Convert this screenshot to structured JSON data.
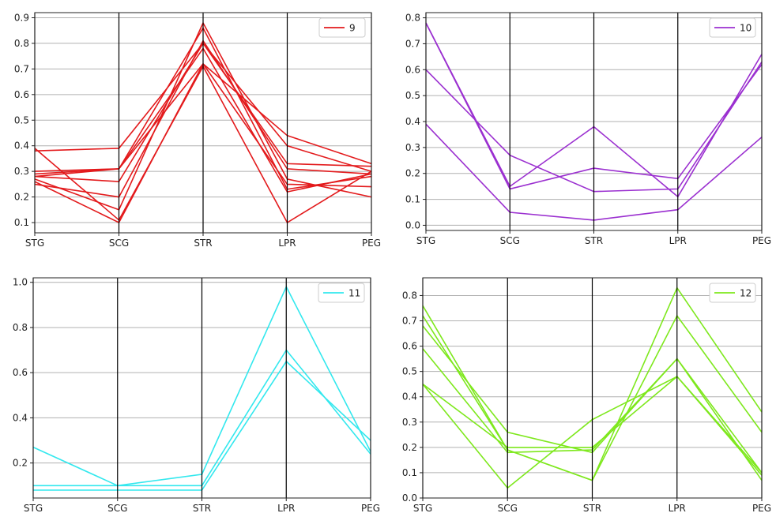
{
  "chart_data": [
    {
      "type": "line",
      "subtype": "parallel-coordinates",
      "title": "",
      "categories": [
        "STG",
        "SCG",
        "STR",
        "LPR",
        "PEG"
      ],
      "legend": {
        "label": "9",
        "position": "top-right"
      },
      "color": "#e31a1c",
      "ylim": [
        0.06,
        0.92
      ],
      "yticks": [
        0.1,
        0.2,
        0.3,
        0.4,
        0.5,
        0.6,
        0.7,
        0.8,
        0.9
      ],
      "ytick_labels": [
        "0.1",
        "0.2",
        "0.3",
        "0.4",
        "0.5",
        "0.6",
        "0.7",
        "0.8",
        "0.9"
      ],
      "series": [
        {
          "name": "9",
          "values": [
            0.38,
            0.39,
            0.8,
            0.4,
            0.3
          ]
        },
        {
          "name": "9",
          "values": [
            0.29,
            0.31,
            0.72,
            0.44,
            0.33
          ]
        },
        {
          "name": "9",
          "values": [
            0.28,
            0.26,
            0.8,
            0.33,
            0.32
          ]
        },
        {
          "name": "9",
          "values": [
            0.25,
            0.2,
            0.81,
            0.31,
            0.29
          ]
        },
        {
          "name": "9",
          "values": [
            0.27,
            0.15,
            0.88,
            0.27,
            0.2
          ]
        },
        {
          "name": "9",
          "values": [
            0.3,
            0.31,
            0.86,
            0.23,
            0.28
          ]
        },
        {
          "name": "9",
          "values": [
            0.26,
            0.1,
            0.72,
            0.25,
            0.24
          ]
        },
        {
          "name": "9",
          "values": [
            0.28,
            0.31,
            0.78,
            0.22,
            0.29
          ]
        },
        {
          "name": "9",
          "values": [
            0.39,
            0.11,
            0.71,
            0.1,
            0.3
          ]
        }
      ]
    },
    {
      "type": "line",
      "subtype": "parallel-coordinates",
      "title": "",
      "categories": [
        "STG",
        "SCG",
        "STR",
        "LPR",
        "PEG"
      ],
      "legend": {
        "label": "10",
        "position": "top-right"
      },
      "color": "#9b30d0",
      "ylim": [
        -0.02,
        0.82
      ],
      "yticks": [
        0.0,
        0.1,
        0.2,
        0.3,
        0.4,
        0.5,
        0.6,
        0.7,
        0.8
      ],
      "ytick_labels": [
        "0.0",
        "0.1",
        "0.2",
        "0.3",
        "0.4",
        "0.5",
        "0.6",
        "0.7",
        "0.8"
      ],
      "series": [
        {
          "name": "10",
          "values": [
            0.78,
            0.15,
            0.38,
            0.11,
            0.66
          ]
        },
        {
          "name": "10",
          "values": [
            0.78,
            0.14,
            0.22,
            0.18,
            0.62
          ]
        },
        {
          "name": "10",
          "values": [
            0.6,
            0.27,
            0.13,
            0.14,
            0.63
          ]
        },
        {
          "name": "10",
          "values": [
            0.39,
            0.05,
            0.02,
            0.06,
            0.34
          ]
        }
      ]
    },
    {
      "type": "line",
      "subtype": "parallel-coordinates",
      "title": "",
      "categories": [
        "STG",
        "SCG",
        "STR",
        "LPR",
        "PEG"
      ],
      "legend": {
        "label": "11",
        "position": "top-right"
      },
      "color": "#33e8ee",
      "ylim": [
        0.045,
        1.02
      ],
      "yticks": [
        0.2,
        0.4,
        0.6,
        0.8,
        1.0
      ],
      "ytick_labels": [
        "0.2",
        "0.4",
        "0.6",
        "0.8",
        "1.0"
      ],
      "series": [
        {
          "name": "11",
          "values": [
            0.27,
            0.1,
            0.15,
            0.98,
            0.25
          ]
        },
        {
          "name": "11",
          "values": [
            0.1,
            0.1,
            0.1,
            0.7,
            0.24
          ]
        },
        {
          "name": "11",
          "values": [
            0.08,
            0.08,
            0.08,
            0.65,
            0.3
          ]
        }
      ]
    },
    {
      "type": "line",
      "subtype": "parallel-coordinates",
      "title": "",
      "categories": [
        "STG",
        "SCG",
        "STR",
        "LPR",
        "PEG"
      ],
      "legend": {
        "label": "12",
        "position": "top-right"
      },
      "color": "#7ee81d",
      "ylim": [
        0.0,
        0.87
      ],
      "yticks": [
        0.0,
        0.1,
        0.2,
        0.3,
        0.4,
        0.5,
        0.6,
        0.7,
        0.8
      ],
      "ytick_labels": [
        "0.0",
        "0.1",
        "0.2",
        "0.3",
        "0.4",
        "0.5",
        "0.6",
        "0.7",
        "0.8"
      ],
      "series": [
        {
          "name": "12",
          "values": [
            0.76,
            0.19,
            0.07,
            0.83,
            0.34
          ]
        },
        {
          "name": "12",
          "values": [
            0.72,
            0.19,
            0.07,
            0.72,
            0.26
          ]
        },
        {
          "name": "12",
          "values": [
            0.68,
            0.26,
            0.18,
            0.55,
            0.07
          ]
        },
        {
          "name": "12",
          "values": [
            0.59,
            0.18,
            0.19,
            0.55,
            0.1
          ]
        },
        {
          "name": "12",
          "values": [
            0.45,
            0.2,
            0.2,
            0.48,
            0.09
          ]
        },
        {
          "name": "12",
          "values": [
            0.45,
            0.04,
            0.31,
            0.48,
            0.1
          ]
        }
      ]
    }
  ]
}
